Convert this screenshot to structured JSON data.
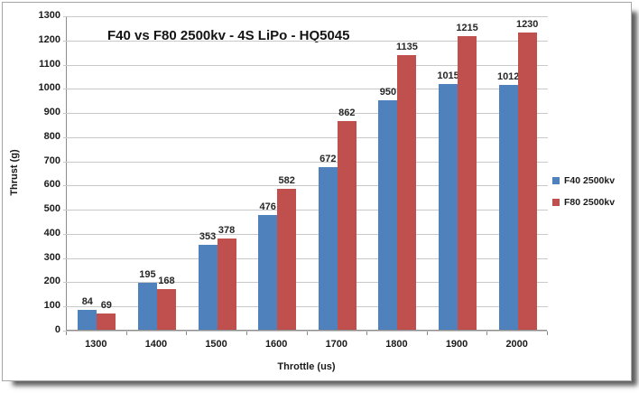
{
  "chart_data": {
    "type": "bar",
    "title": "F40 vs F80 2500kv - 4S LiPo - HQ5045",
    "xlabel": "Throttle (us)",
    "ylabel": "Thrust (g)",
    "categories": [
      "1300",
      "1400",
      "1500",
      "1600",
      "1700",
      "1800",
      "1900",
      "2000"
    ],
    "series": [
      {
        "name": "F40 2500kv",
        "color": "#4F81BD",
        "values": [
          84,
          195,
          353,
          476,
          672,
          950,
          1015,
          1012
        ]
      },
      {
        "name": "F80 2500kv",
        "color": "#C0504D",
        "values": [
          69,
          168,
          378,
          582,
          862,
          1135,
          1215,
          1230
        ]
      }
    ],
    "ylim": [
      0,
      1300
    ],
    "yticks": [
      0,
      100,
      200,
      300,
      400,
      500,
      600,
      700,
      800,
      900,
      1000,
      1100,
      1200,
      1300
    ],
    "grid": "horizontal",
    "legend_position": "right",
    "data_labels": true
  },
  "colors": {
    "gridline": "#c9c9c9",
    "axis": "#8c8c8c",
    "label_text": "#262626"
  }
}
